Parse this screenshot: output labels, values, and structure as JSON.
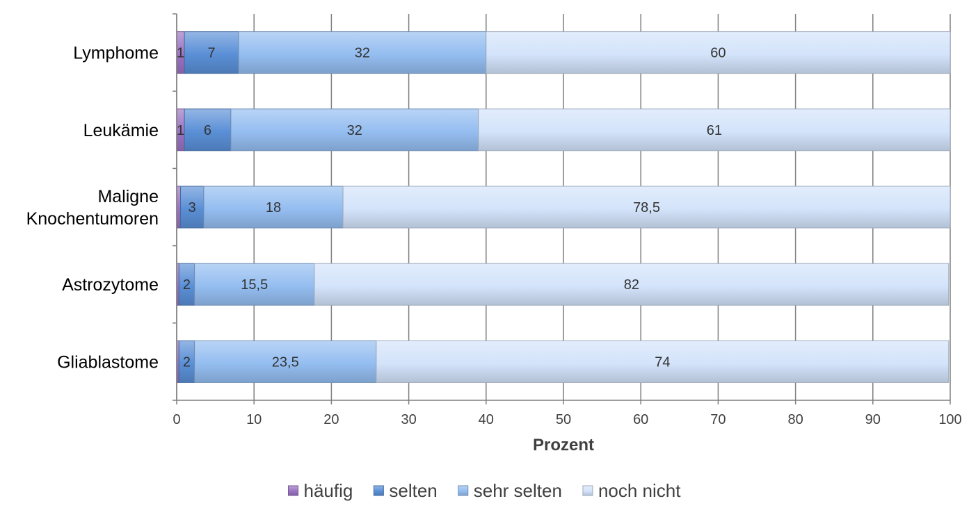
{
  "chart_data": {
    "type": "bar",
    "orientation": "horizontal",
    "stacked": true,
    "categories": [
      "Lymphome",
      "Leukämie",
      "Maligne Knochentumoren",
      "Astrozytome",
      "Gliablastome"
    ],
    "category_lines": [
      [
        "Lymphome"
      ],
      [
        "Leukämie"
      ],
      [
        "Maligne",
        "Knochentumoren"
      ],
      [
        "Astrozytome"
      ],
      [
        "Gliablastome"
      ]
    ],
    "series": [
      {
        "name": "häufig",
        "color": "#9b72c2",
        "values": [
          1,
          1,
          0.5,
          0.3,
          0.3
        ],
        "labels": [
          "1",
          "1",
          "",
          "",
          ""
        ]
      },
      {
        "name": "selten",
        "color": "#5a8fd6",
        "values": [
          7,
          6,
          3,
          2,
          2
        ],
        "labels": [
          "7",
          "6",
          "3",
          "2",
          "2"
        ]
      },
      {
        "name": "sehr selten",
        "color": "#94bdf0",
        "values": [
          32,
          32,
          18,
          15.5,
          23.5
        ],
        "labels": [
          "32",
          "32",
          "18",
          "15,5",
          "23,5"
        ]
      },
      {
        "name": "noch nicht",
        "color": "#d3e3fa",
        "values": [
          60,
          61,
          78.5,
          82,
          74
        ],
        "labels": [
          "60",
          "61",
          "78,5",
          "82",
          "74"
        ]
      }
    ],
    "xlabel": "Prozent",
    "xlim": [
      0,
      100
    ],
    "xticks": [
      0,
      10,
      20,
      30,
      40,
      50,
      60,
      70,
      80,
      90,
      100
    ],
    "grid": true,
    "legend": "bottom"
  }
}
